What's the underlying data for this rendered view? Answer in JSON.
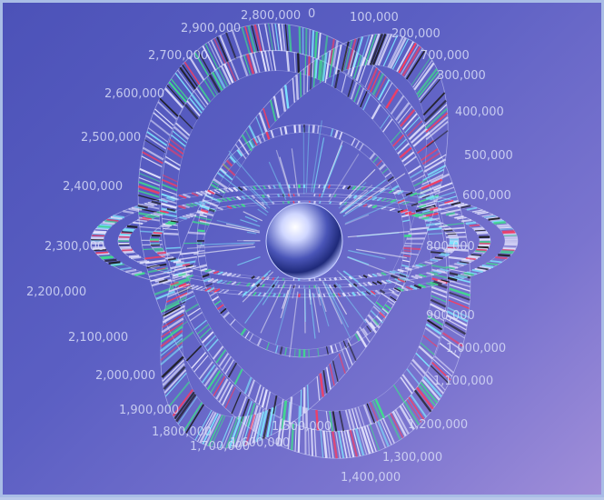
{
  "image": {
    "background_color": "#5a5dc0",
    "accent_colors": [
      "#ff3a5a",
      "#3ee08a",
      "#7fe9ff",
      "#1a1a1a",
      "#e8e8ff"
    ]
  },
  "diagram": {
    "center_object": "chrome-sphere",
    "coordinate_labels": [
      "2,800,000",
      "0",
      "100,000",
      "200,000",
      "700,000",
      "2,900,000",
      "2,700,000",
      "2,600,000",
      "2,500,000",
      "2,400,000",
      "2,300,000",
      "2,200,000",
      "2,100,000",
      "2,000,000",
      "1,900,000",
      "1,800,000",
      "1,700,000",
      "1,600,000",
      "1,500,000",
      "1,400,000",
      "300,000",
      "400,000",
      "500,000",
      "600,000",
      "800,000",
      "900,000",
      "1,000,000",
      "1,100,000",
      "1,200,000",
      "1,300,000"
    ]
  }
}
